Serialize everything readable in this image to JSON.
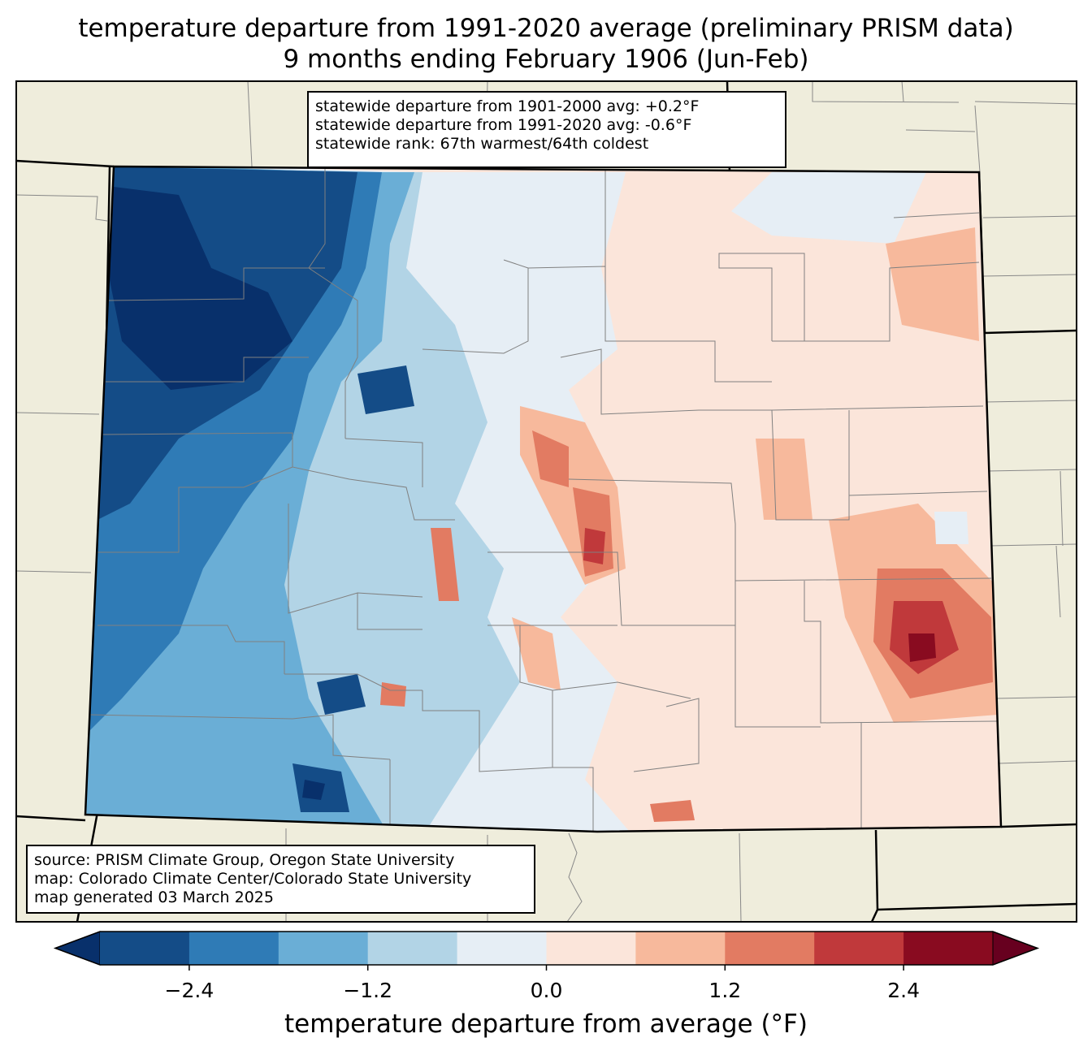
{
  "title": {
    "line1": "temperature departure from 1991-2020 average (preliminary PRISM data)",
    "line2": "9 months ending February 1906 (Jun-Feb)"
  },
  "stats": {
    "line1": "statewide departure from 1901-2000 avg: +0.2°F",
    "line2": "statewide departure from 1991-2020 avg: -0.6°F",
    "line3": "statewide rank: 67th warmest/64th coldest"
  },
  "source": {
    "line1": "source: PRISM Climate Group, Oregon State University",
    "line2": "map: Colorado Climate Center/Colorado State University",
    "line3": "map generated 03 March 2025"
  },
  "colorbar": {
    "label": "temperature departure from average (°F)",
    "ticks": [
      "−2.4",
      "−1.2",
      "0.0",
      "1.2",
      "2.4"
    ],
    "tick_values": [
      -2.4,
      -1.2,
      0.0,
      1.2,
      2.4
    ],
    "range": [
      -3.0,
      3.0
    ],
    "step": 0.6,
    "colors": [
      "#08306b",
      "#144c87",
      "#2f7bb6",
      "#6aaed6",
      "#b2d4e6",
      "#e6eef5",
      "#fbe5da",
      "#f7b99c",
      "#e27b62",
      "#c0393b",
      "#890b20",
      "#67001f"
    ]
  },
  "map": {
    "background_color": "#efeddc",
    "state_fill_default": "#fbe5da"
  }
}
